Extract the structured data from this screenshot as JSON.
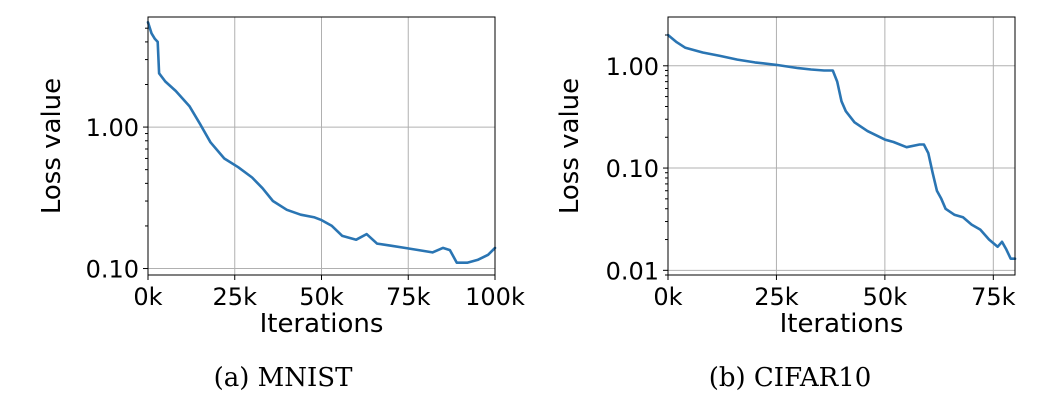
{
  "chart_data": [
    {
      "type": "line",
      "caption": "(a) MNIST",
      "xlabel": "Iterations",
      "ylabel": "Loss value",
      "yscale": "log",
      "xlim": [
        0,
        100000
      ],
      "ylim": [
        0.09,
        6
      ],
      "grid": true,
      "xticks": [
        0,
        25000,
        50000,
        75000,
        100000
      ],
      "xtick_labels": [
        "0k",
        "25k",
        "50k",
        "75k",
        "100k"
      ],
      "yticks": [
        0.1,
        1.0
      ],
      "ytick_labels": [
        "0.10",
        "1.00"
      ],
      "color": "#2a75b3",
      "series": [
        {
          "x": [
            0,
            1000,
            2000,
            2800,
            3200,
            5000,
            8000,
            12000,
            15000,
            18000,
            22000,
            26000,
            30000,
            33000,
            36000,
            40000,
            44000,
            48000,
            50000,
            53000,
            56000,
            60000,
            63000,
            66000,
            70000,
            74000,
            78000,
            82000,
            85000,
            87000,
            89000,
            92000,
            95000,
            98000,
            100000
          ],
          "y": [
            5.5,
            4.6,
            4.2,
            4.0,
            2.4,
            2.1,
            1.8,
            1.4,
            1.05,
            0.78,
            0.6,
            0.52,
            0.44,
            0.37,
            0.3,
            0.26,
            0.24,
            0.23,
            0.22,
            0.2,
            0.17,
            0.16,
            0.175,
            0.15,
            0.145,
            0.14,
            0.135,
            0.13,
            0.14,
            0.135,
            0.11,
            0.11,
            0.115,
            0.125,
            0.14
          ]
        }
      ]
    },
    {
      "type": "line",
      "caption": "(b) CIFAR10",
      "xlabel": "Iterations",
      "ylabel": "Loss value",
      "yscale": "log",
      "xlim": [
        0,
        80000
      ],
      "ylim": [
        0.009,
        3
      ],
      "grid": true,
      "xticks": [
        0,
        25000,
        50000,
        75000
      ],
      "xtick_labels": [
        "0k",
        "25k",
        "50k",
        "75k"
      ],
      "yticks": [
        0.01,
        0.1,
        1.0
      ],
      "ytick_labels": [
        "0.01",
        "0.10",
        "1.00"
      ],
      "color": "#2a75b3",
      "series": [
        {
          "x": [
            0,
            2000,
            4000,
            8000,
            12000,
            16000,
            20000,
            25000,
            30000,
            33000,
            36000,
            38000,
            39000,
            40000,
            41000,
            43000,
            46000,
            50000,
            52000,
            55000,
            58000,
            59000,
            60000,
            61000,
            62000,
            63000,
            64000,
            66000,
            68000,
            70000,
            72000,
            74000,
            76000,
            77000,
            78000,
            79000,
            80000
          ],
          "y": [
            2.0,
            1.7,
            1.5,
            1.35,
            1.25,
            1.15,
            1.08,
            1.02,
            0.95,
            0.92,
            0.9,
            0.9,
            0.7,
            0.45,
            0.36,
            0.28,
            0.23,
            0.19,
            0.18,
            0.16,
            0.17,
            0.17,
            0.14,
            0.09,
            0.06,
            0.05,
            0.04,
            0.035,
            0.033,
            0.028,
            0.025,
            0.02,
            0.017,
            0.019,
            0.016,
            0.013,
            0.013
          ]
        }
      ]
    }
  ]
}
